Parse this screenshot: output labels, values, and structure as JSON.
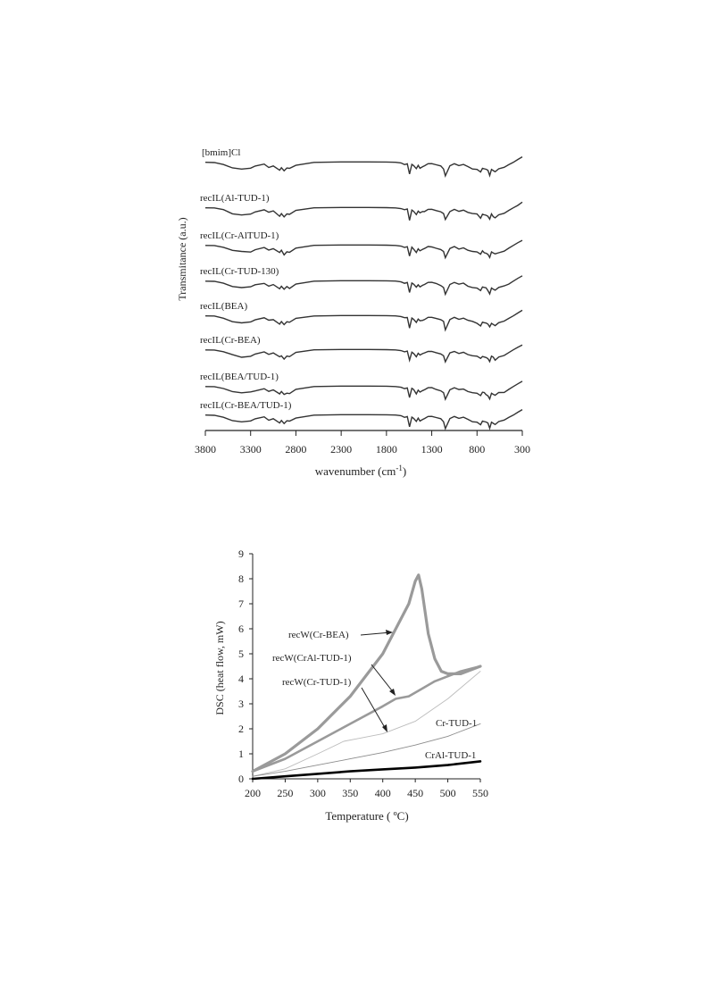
{
  "chart_data": [
    {
      "type": "line",
      "ylabel": "Transmitance (a.u.)",
      "xlabel": "wavenumber (cm",
      "xlabel_sup": "-1",
      "xlabel_suffix": ")",
      "xlim": [
        3800,
        300
      ],
      "x_ticks": [
        "3800",
        "3300",
        "2800",
        "2300",
        "1800",
        "1300",
        "800",
        "300"
      ],
      "x_tick_values": [
        3800,
        3300,
        2800,
        2300,
        1800,
        1300,
        800,
        300
      ],
      "series": [
        {
          "name": "[bmim]Cl"
        },
        {
          "name": "recIL(Al-TUD-1)"
        },
        {
          "name": "recIL(Cr-AlTUD-1)"
        },
        {
          "name": "recIL(Cr-TUD-130)"
        },
        {
          "name": "recIL(BEA)"
        },
        {
          "name": "recIL(Cr-BEA)"
        },
        {
          "name": "recIL(BEA/TUD-1)"
        },
        {
          "name": "recIL(Cr-BEA/TUD-1)"
        }
      ],
      "spectrum_shape": {
        "x": [
          3800,
          3700,
          3600,
          3500,
          3400,
          3300,
          3250,
          3150,
          3100,
          3050,
          2980,
          2960,
          2930,
          2900,
          2870,
          2800,
          2600,
          2300,
          2000,
          1800,
          1700,
          1640,
          1600,
          1570,
          1545,
          1520,
          1500,
          1470,
          1450,
          1430,
          1400,
          1380,
          1340,
          1300,
          1250,
          1200,
          1170,
          1150,
          1100,
          1050,
          1000,
          950,
          900,
          850,
          800,
          760,
          740,
          720,
          700,
          680,
          660,
          640,
          620,
          600,
          560,
          500,
          450,
          400,
          350,
          300
        ],
        "y": [
          0.05,
          0.06,
          0.2,
          0.45,
          0.55,
          0.5,
          0.35,
          0.2,
          0.4,
          0.3,
          0.62,
          0.45,
          0.7,
          0.5,
          0.55,
          0.25,
          0.05,
          0.02,
          0.02,
          0.03,
          0.05,
          0.1,
          0.2,
          0.15,
          0.9,
          0.2,
          0.3,
          0.55,
          0.3,
          0.45,
          0.35,
          0.3,
          0.15,
          0.15,
          0.25,
          0.35,
          0.5,
          1.0,
          0.3,
          0.15,
          0.3,
          0.22,
          0.4,
          0.5,
          0.55,
          0.75,
          0.5,
          0.55,
          0.6,
          0.7,
          0.95,
          0.55,
          0.65,
          0.75,
          0.55,
          0.45,
          0.25,
          0.05,
          -0.15,
          -0.35
        ]
      }
    },
    {
      "type": "line",
      "xlabel": "Temperature ( ºC)",
      "ylabel": "DSC (heat flow, mW)",
      "xlim": [
        200,
        550
      ],
      "ylim": [
        0,
        9
      ],
      "x_ticks": [
        "200",
        "250",
        "300",
        "350",
        "400",
        "450",
        "500",
        "550"
      ],
      "x_tick_values": [
        200,
        250,
        300,
        350,
        400,
        450,
        500,
        550
      ],
      "y_ticks": [
        "0",
        "1",
        "2",
        "3",
        "4",
        "5",
        "6",
        "7",
        "8",
        "9"
      ],
      "y_tick_values": [
        0,
        1,
        2,
        3,
        4,
        5,
        6,
        7,
        8,
        9
      ],
      "series": [
        {
          "name": "recW(Cr-BEA)",
          "color": "#9a9a9a",
          "x": [
            200,
            250,
            300,
            350,
            400,
            420,
            440,
            450,
            455,
            460,
            470,
            480,
            490,
            500,
            520,
            550
          ],
          "y": [
            0.3,
            1.0,
            2.0,
            3.3,
            5.0,
            6.0,
            7.0,
            7.9,
            8.15,
            7.6,
            5.8,
            4.8,
            4.3,
            4.2,
            4.2,
            4.5
          ]
        },
        {
          "name": "recW(CrAl-TUD-1)",
          "color": "#9a9a9a",
          "x": [
            200,
            250,
            300,
            350,
            400,
            420,
            440,
            460,
            480,
            500,
            520,
            550
          ],
          "y": [
            0.3,
            0.8,
            1.5,
            2.2,
            2.9,
            3.2,
            3.3,
            3.6,
            3.9,
            4.1,
            4.3,
            4.5
          ]
        },
        {
          "name": "recW(Cr-TUD-1)",
          "color": "#bcbcbc",
          "x": [
            200,
            250,
            300,
            340,
            360,
            400,
            450,
            500,
            550
          ],
          "y": [
            0.1,
            0.4,
            1.0,
            1.5,
            1.6,
            1.8,
            2.3,
            3.2,
            4.3
          ]
        },
        {
          "name": "Cr-TUD-1",
          "color": "#8c8c8c",
          "x": [
            200,
            250,
            300,
            350,
            400,
            450,
            500,
            550
          ],
          "y": [
            0.1,
            0.3,
            0.55,
            0.8,
            1.05,
            1.35,
            1.7,
            2.2
          ]
        },
        {
          "name": "CrAl-TUD-1",
          "color": "#000000",
          "x": [
            200,
            250,
            300,
            350,
            400,
            450,
            500,
            550
          ],
          "y": [
            0.0,
            0.1,
            0.2,
            0.3,
            0.38,
            0.45,
            0.55,
            0.7
          ]
        }
      ]
    }
  ]
}
